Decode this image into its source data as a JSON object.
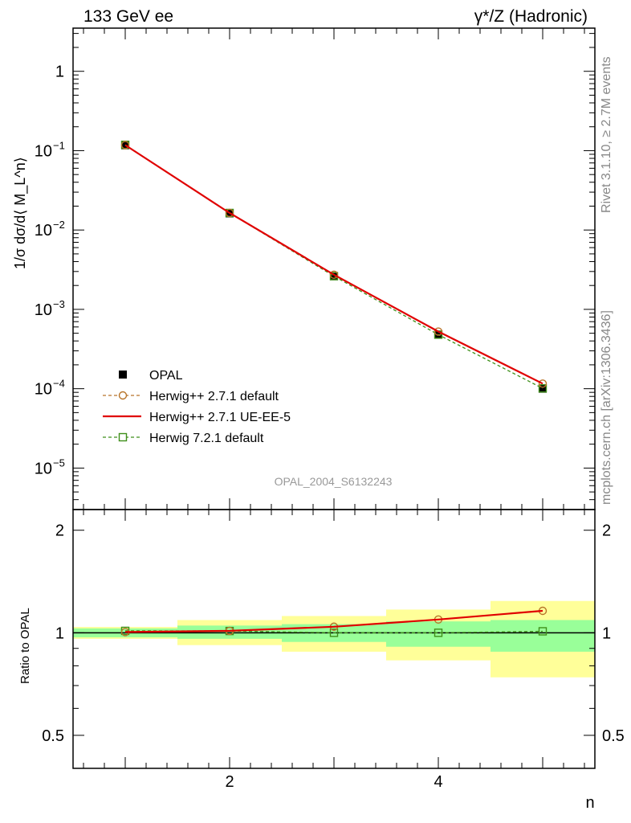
{
  "header": {
    "left_title": "133 GeV ee",
    "right_title": "γ*/Z (Hadronic)"
  },
  "side_labels": {
    "rivet": "Rivet 3.1.10, ≥ 2.7M events",
    "mcplots": "mcplots.cern.ch [arXiv:1306.3436]"
  },
  "watermark": "OPAL_2004_S6132243",
  "colors": {
    "opal": "#000000",
    "herwigpp_default": "#b8752a",
    "herwigpp_ueee5": "#e00000",
    "herwig72_default": "#3f8f1a",
    "band_inner": "#99ff99",
    "band_outer": "#ffff99"
  },
  "chart_data": [
    {
      "type": "line",
      "panel": "main",
      "ylabel": "1/σ dσ/d⟨ M_L^n⟩",
      "yscale": "log",
      "ylim": [
        3e-06,
        3.5
      ],
      "xlim": [
        0.5,
        5.5
      ],
      "x_ticks": [
        2,
        4
      ],
      "y_tick_labels": [
        "1",
        "10^-1",
        "10^-2",
        "10^-3",
        "10^-4",
        "10^-5"
      ],
      "legend_position": "bottom-left",
      "x": [
        1,
        2,
        3,
        4,
        5
      ],
      "series": [
        {
          "name": "OPAL",
          "values": [
            0.117,
            0.0162,
            0.00262,
            0.00048,
            0.0001
          ],
          "style": "markers"
        },
        {
          "name": "Herwig++ 2.7.1 default",
          "values": [
            0.1176,
            0.0164,
            0.00273,
            0.000525,
            0.000116
          ],
          "style": "dashed-circle"
        },
        {
          "name": "Herwig++ 2.7.1 UE-EE-5",
          "values": [
            0.1176,
            0.0164,
            0.00273,
            0.000525,
            0.000116
          ],
          "style": "solid"
        },
        {
          "name": "Herwig 7.2.1 default",
          "values": [
            0.1185,
            0.0164,
            0.00262,
            0.00048,
            0.000101
          ],
          "style": "dashed-square"
        }
      ]
    },
    {
      "type": "line",
      "panel": "ratio",
      "ylabel": "Ratio to OPAL",
      "xlabel": "n",
      "yscale": "log",
      "ylim": [
        0.4,
        2.3
      ],
      "xlim": [
        0.5,
        5.5
      ],
      "x_ticks": [
        2,
        4
      ],
      "y_tick_labels": [
        "0.5",
        "1",
        "2"
      ],
      "x": [
        1,
        2,
        3,
        4,
        5
      ],
      "bands": {
        "inner": [
          [
            0.97,
            1.03
          ],
          [
            0.96,
            1.05
          ],
          [
            0.94,
            1.06
          ],
          [
            0.91,
            1.08
          ],
          [
            0.88,
            1.09
          ]
        ],
        "outer": [
          [
            0.96,
            1.04
          ],
          [
            0.92,
            1.09
          ],
          [
            0.88,
            1.12
          ],
          [
            0.83,
            1.17
          ],
          [
            0.74,
            1.24
          ]
        ]
      },
      "series": [
        {
          "name": "Herwig++ 2.7.1 default",
          "values": [
            1.005,
            1.013,
            1.042,
            1.094,
            1.16
          ]
        },
        {
          "name": "Herwig++ 2.7.1 UE-EE-5",
          "values": [
            1.005,
            1.013,
            1.042,
            1.094,
            1.16
          ]
        },
        {
          "name": "Herwig 7.2.1 default",
          "values": [
            1.013,
            1.012,
            1.0,
            1.0,
            1.01
          ]
        }
      ]
    }
  ]
}
